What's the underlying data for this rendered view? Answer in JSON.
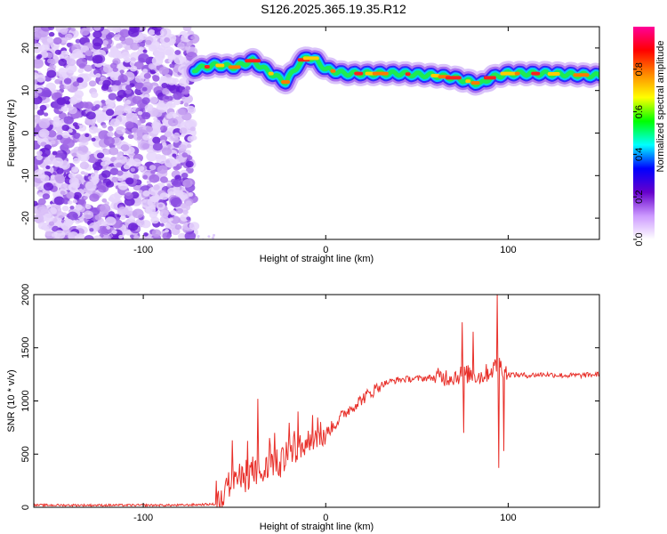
{
  "title": "S126.2025.365.19.35.R12",
  "chart_data": [
    {
      "type": "heatmap",
      "title": "S126.2025.365.19.35.R12",
      "xlabel": "Height of straight line (km)",
      "ylabel": "Frequency (Hz)",
      "xlim": [
        -160,
        150
      ],
      "ylim": [
        -25,
        25
      ],
      "x_ticks": [
        -100,
        0,
        100
      ],
      "y_ticks": [
        20,
        10,
        0,
        -10,
        -20
      ],
      "colorbar": {
        "label": "Normalized spectral amplitude",
        "range": [
          0,
          1
        ],
        "ticks": [
          "0.0",
          "0.2",
          "0.4",
          "0.6",
          "0.8"
        ],
        "colors": [
          "#ffffff",
          "#cc99ff",
          "#6600cc",
          "#0000ff",
          "#00ffff",
          "#00ff00",
          "#ffff00",
          "#ff8800",
          "#ff0000",
          "#ff0099"
        ]
      },
      "noise_region": {
        "x_from": -160,
        "x_to": -72
      },
      "dominant_frequency_trace": {
        "x": [
          -72,
          -60,
          -50,
          -40,
          -30,
          -22,
          -15,
          -10,
          -5,
          0,
          10,
          20,
          40,
          60,
          70,
          80,
          85,
          90,
          100,
          120,
          150
        ],
        "y": [
          15,
          16,
          15.5,
          17,
          14,
          12,
          16,
          18,
          17,
          15,
          14,
          14,
          14,
          13.5,
          13,
          12,
          11.5,
          13,
          14,
          14,
          13.5
        ]
      }
    },
    {
      "type": "line",
      "xlabel": "Height of straight line (km)",
      "ylabel": "SNR (10 * v/v)",
      "xlim": [
        -160,
        150
      ],
      "ylim": [
        0,
        2000
      ],
      "x_ticks": [
        -100,
        0,
        100
      ],
      "y_ticks": [
        0,
        500,
        1000,
        1500,
        2000
      ],
      "series": [
        {
          "name": "SNR",
          "color": "#e8302a",
          "x": [
            -160,
            -140,
            -120,
            -100,
            -80,
            -60,
            -55,
            -50,
            -45,
            -40,
            -35,
            -30,
            -25,
            -20,
            -15,
            -10,
            -5,
            0,
            5,
            10,
            15,
            20,
            25,
            30,
            35,
            40,
            50,
            60,
            70,
            75,
            80,
            85,
            90,
            95,
            100,
            110,
            120,
            130,
            140,
            150
          ],
          "values": [
            20,
            20,
            20,
            20,
            20,
            30,
            150,
            300,
            250,
            350,
            300,
            420,
            400,
            500,
            550,
            600,
            680,
            700,
            780,
            880,
            950,
            1020,
            1080,
            1150,
            1180,
            1200,
            1210,
            1220,
            1230,
            1250,
            1250,
            1230,
            1280,
            1350,
            1250,
            1240,
            1250,
            1240,
            1240,
            1250
          ]
        }
      ],
      "spikes": [
        {
          "x": -51,
          "value": 630
        },
        {
          "x": -37,
          "value": 1020
        },
        {
          "x": -28,
          "value": 700
        },
        {
          "x": -15,
          "value": 900
        },
        {
          "x": 75,
          "value": 1740
        },
        {
          "x": 81,
          "value": 1650
        },
        {
          "x": 94,
          "value": 2000
        },
        {
          "x": 94,
          "value": 370
        },
        {
          "x": 75,
          "value": 700
        },
        {
          "x": 97,
          "value": 530
        }
      ]
    }
  ]
}
